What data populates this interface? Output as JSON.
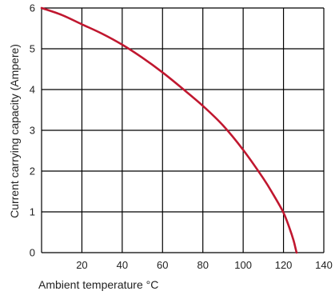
{
  "chart_data": {
    "type": "line",
    "title": "",
    "xlabel": "Ambient temperature °C",
    "ylabel": "Current carrying capacity (Ampere)",
    "xlim": [
      0,
      140
    ],
    "ylim": [
      0,
      6
    ],
    "x_ticks": [
      20,
      40,
      60,
      80,
      100,
      120,
      140
    ],
    "y_ticks": [
      0,
      1,
      2,
      3,
      4,
      5,
      6
    ],
    "x_tick_labels": [
      "20",
      "40",
      "60",
      "80",
      "100",
      "120",
      "140"
    ],
    "y_tick_labels": [
      "0",
      "1",
      "2",
      "3",
      "4",
      "5",
      "6"
    ],
    "grid": true,
    "legend": "none",
    "colors": {
      "line": "#c0172f",
      "grid": "#000000"
    },
    "series": [
      {
        "x": [
          0,
          10,
          20,
          30,
          40,
          50,
          60,
          70,
          80,
          90,
          100,
          110,
          115,
          120,
          123,
          125,
          126,
          126.5
        ],
        "y": [
          6.0,
          5.83,
          5.6,
          5.37,
          5.1,
          4.78,
          4.42,
          4.02,
          3.6,
          3.12,
          2.52,
          1.82,
          1.42,
          0.98,
          0.6,
          0.3,
          0.1,
          0.0
        ]
      }
    ]
  }
}
